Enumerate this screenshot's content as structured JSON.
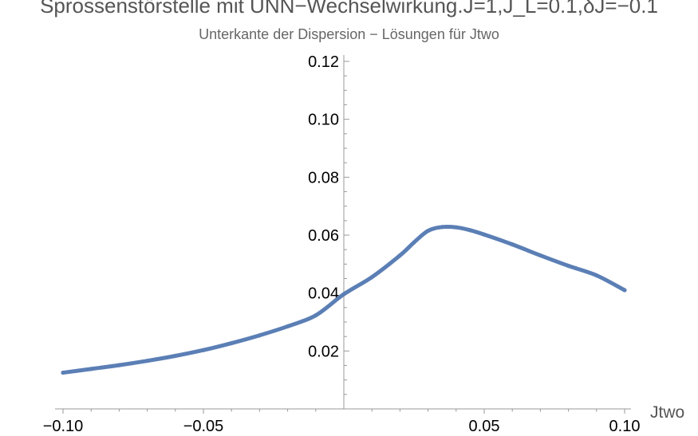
{
  "chart_data": {
    "type": "line",
    "title": "Sprossenstörstelle mit UNN−Wechselwirkung.J=1,J_L=0.1,δJ=−0.1",
    "subtitle": "Unterkante der Dispersion − Lösungen für Jtwo",
    "xlabel": "Jtwo",
    "ylabel": "",
    "xlim": [
      -0.1,
      0.1
    ],
    "ylim": [
      0.0,
      0.12
    ],
    "x_ticks": [
      "−0.10",
      "−0.05",
      "0.05",
      "0.10"
    ],
    "y_ticks": [
      "0.02",
      "0.04",
      "0.06",
      "0.08",
      "0.10",
      "0.12"
    ],
    "grid": false,
    "series": [
      {
        "color": "#5b7fb5",
        "x": [
          -0.1,
          -0.09,
          -0.08,
          -0.07,
          -0.06,
          -0.05,
          -0.04,
          -0.03,
          -0.02,
          -0.01,
          0.0,
          0.01,
          0.02,
          0.025,
          0.03,
          0.035,
          0.04,
          0.045,
          0.05,
          0.06,
          0.07,
          0.08,
          0.09,
          0.1
        ],
        "y": [
          0.0125,
          0.0138,
          0.0151,
          0.0166,
          0.0183,
          0.0203,
          0.0227,
          0.0254,
          0.0285,
          0.0323,
          0.0396,
          0.0455,
          0.053,
          0.0575,
          0.0615,
          0.0628,
          0.0627,
          0.0617,
          0.0602,
          0.0568,
          0.053,
          0.0494,
          0.0461,
          0.041
        ]
      }
    ]
  }
}
